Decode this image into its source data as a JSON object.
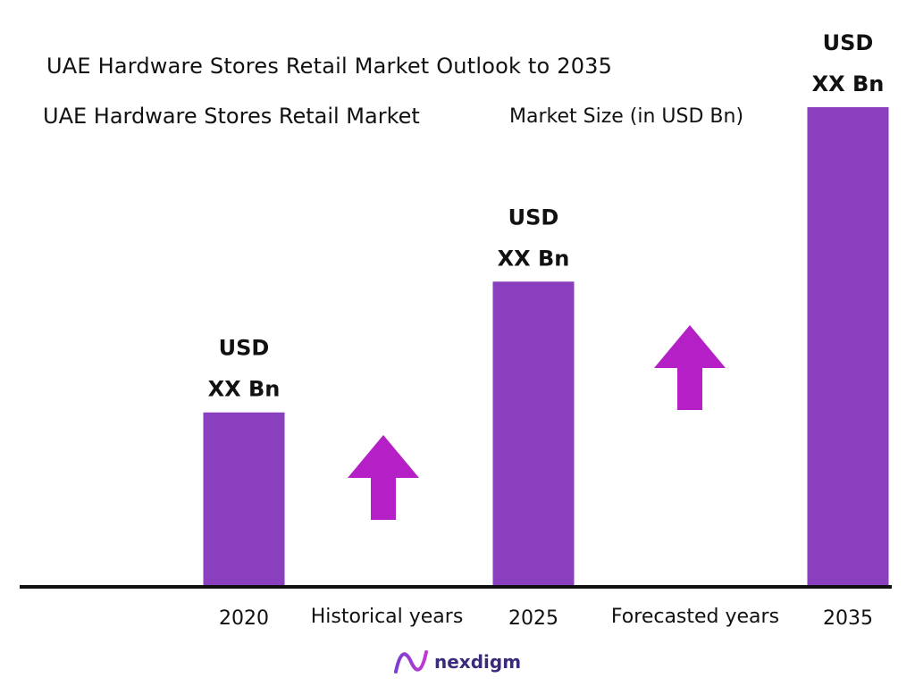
{
  "header": {
    "title": "UAE Hardware Stores Retail Market Outlook to 2035",
    "subtitle": "UAE Hardware Stores Retail Market"
  },
  "chart_data": {
    "type": "bar",
    "ylabel": "Market Size (in USD Bn)",
    "categories": [
      "2020",
      "2025",
      "2035"
    ],
    "values": [
      2.0,
      3.5,
      5.5
    ],
    "value_labels": [
      [
        "USD",
        "XX Bn"
      ],
      [
        "USD",
        "XX Bn"
      ],
      [
        "USD",
        "XX Bn"
      ]
    ],
    "period_labels": [
      "Historical years",
      "Forecasted years"
    ],
    "ylim": [
      0,
      5.5
    ],
    "grid": false,
    "bar_color": "#8a3fbf",
    "arrow_color": "#b41fc6",
    "axis_color": "#111111"
  },
  "footer": {
    "brand": "nexdigm",
    "logo_icon": "nexdigm-logo-icon"
  }
}
